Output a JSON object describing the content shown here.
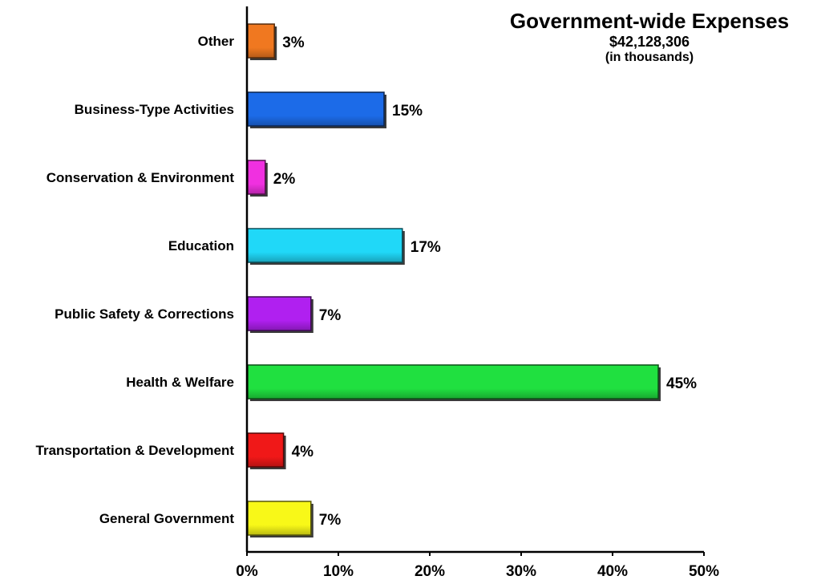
{
  "chart_data": {
    "type": "bar",
    "orientation": "horizontal",
    "title": "Government-wide Expenses",
    "subtitle": "$42,128,306",
    "subtitle_2": "(in thousands)",
    "categories": [
      "Other",
      "Business-Type Activities",
      "Conservation & Environment",
      "Education",
      "Public Safety & Corrections",
      "Health & Welfare",
      "Transportation & Development",
      "General Government"
    ],
    "values": [
      3,
      15,
      2,
      17,
      7,
      45,
      4,
      7
    ],
    "data_labels": [
      "3%",
      "15%",
      "2%",
      "17%",
      "7%",
      "45%",
      "4%",
      "7%"
    ],
    "colors": [
      "#F07820",
      "#1C6BE8",
      "#F030E0",
      "#20D8F8",
      "#B020F0",
      "#20E040",
      "#F01818",
      "#F8F818"
    ],
    "xlim": [
      0,
      50
    ],
    "x_ticks": [
      "0%",
      "10%",
      "20%",
      "30%",
      "40%",
      "50%"
    ],
    "x_tick_values": [
      0,
      10,
      20,
      30,
      40,
      50
    ],
    "grid": false,
    "legend": "none"
  }
}
